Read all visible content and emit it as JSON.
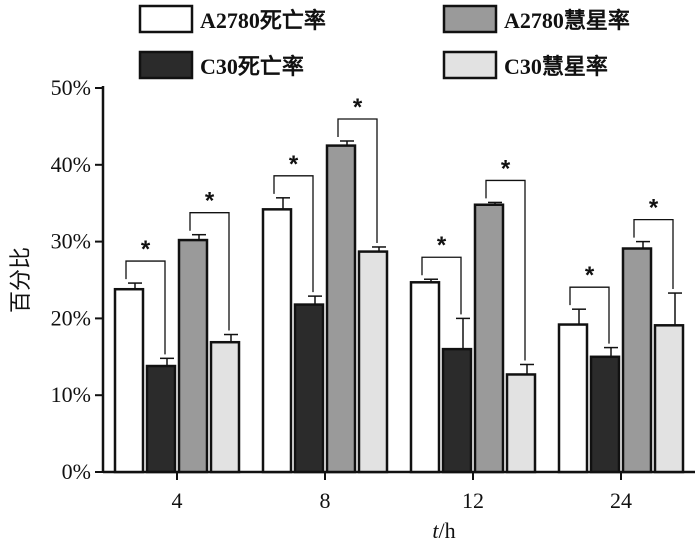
{
  "chart_data": {
    "type": "bar",
    "categories": [
      "4",
      "8",
      "12",
      "24"
    ],
    "series": [
      {
        "name": "A2780死亡率",
        "values": [
          23.8,
          34.2,
          24.7,
          19.2
        ],
        "errors": [
          0.8,
          1.5,
          0.4,
          2.0
        ],
        "color": "#ffffff"
      },
      {
        "name": "C30死亡率",
        "values": [
          13.8,
          21.8,
          16.0,
          15.0
        ],
        "errors": [
          1.0,
          1.1,
          4.0,
          1.2
        ],
        "color": "#2b2b2b"
      },
      {
        "name": "A2780慧星率",
        "values": [
          30.2,
          42.5,
          34.8,
          29.1
        ],
        "errors": [
          0.7,
          0.6,
          0.3,
          0.9
        ],
        "color": "#9a9a9a"
      },
      {
        "name": "C30慧星率",
        "values": [
          16.9,
          28.7,
          12.7,
          19.1
        ],
        "errors": [
          1.0,
          0.6,
          1.3,
          4.2
        ],
        "color": "#e2e2e2"
      }
    ],
    "significance": [
      {
        "category": "4",
        "pairs": [
          [
            0,
            1,
            "*"
          ],
          [
            2,
            3,
            "*"
          ]
        ]
      },
      {
        "category": "8",
        "pairs": [
          [
            0,
            1,
            "*"
          ],
          [
            2,
            3,
            "*"
          ]
        ]
      },
      {
        "category": "12",
        "pairs": [
          [
            0,
            1,
            "*"
          ],
          [
            2,
            3,
            "*"
          ]
        ]
      },
      {
        "category": "24",
        "pairs": [
          [
            0,
            1,
            "*"
          ],
          [
            2,
            3,
            "*"
          ]
        ]
      }
    ],
    "ylabel": "百分比",
    "xlabel_italic": "t",
    "xlabel_rest": "/h",
    "ylim": [
      0,
      50
    ],
    "yticks": [
      0,
      10,
      20,
      30,
      40,
      50
    ],
    "ytick_labels": [
      "0%",
      "10%",
      "20%",
      "30%",
      "40%",
      "50%"
    ],
    "grid": false,
    "legend_position": "top"
  }
}
